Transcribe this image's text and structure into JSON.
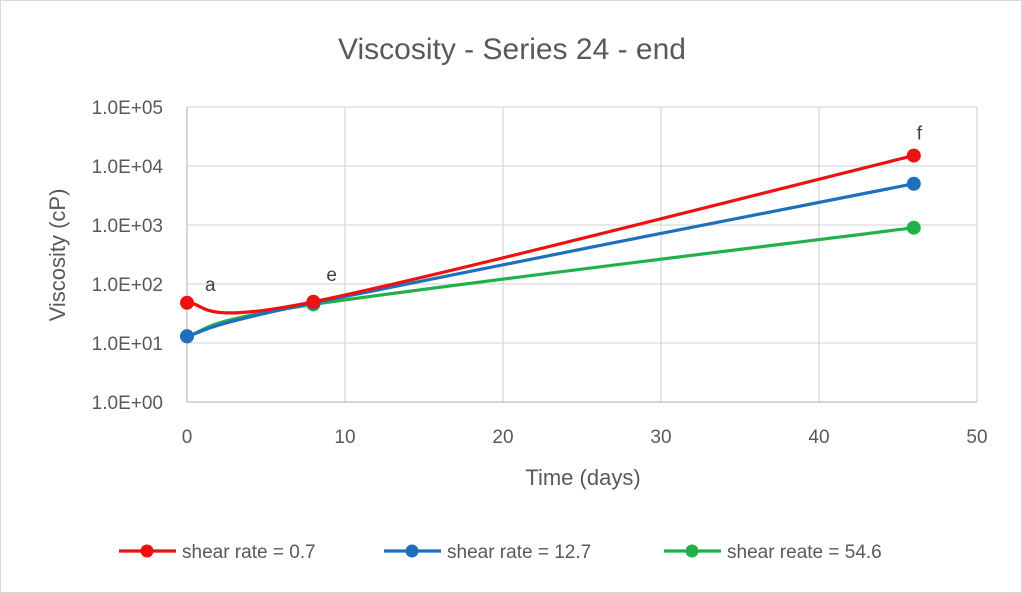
{
  "chart_data": {
    "type": "line",
    "title": "Viscosity - Series 24 - end",
    "xlabel": "Time (days)",
    "ylabel": "Viscosity (cP)",
    "xlim": [
      0,
      50
    ],
    "ylim": [
      1,
      100000
    ],
    "y_scale": "log",
    "x_ticks": [
      "0",
      "10",
      "20",
      "30",
      "40",
      "50"
    ],
    "y_ticks": [
      "1.0E+00",
      "1.0E+01",
      "1.0E+02",
      "1.0E+03",
      "1.0E+04",
      "1.0E+05"
    ],
    "grid": true,
    "legend_position": "bottom",
    "smooth": true,
    "series": [
      {
        "name": "shear rate = 0.7",
        "color": "#ee1111",
        "x": [
          0,
          8,
          46
        ],
        "y": [
          48,
          50,
          15000
        ]
      },
      {
        "name": "shear rate = 12.7",
        "color": "#1f6fbf",
        "x": [
          0,
          8,
          46
        ],
        "y": [
          13,
          48,
          5000
        ]
      },
      {
        "name": "shear reate = 54.6",
        "color": "#22b04b",
        "x": [
          0,
          8,
          46
        ],
        "y": [
          13,
          45,
          900
        ]
      }
    ],
    "annotations": [
      {
        "text": "a",
        "x": 0,
        "y": 48
      },
      {
        "text": "e",
        "x": 8,
        "y": 50
      },
      {
        "text": "f",
        "x": 46,
        "y": 15000
      }
    ]
  }
}
